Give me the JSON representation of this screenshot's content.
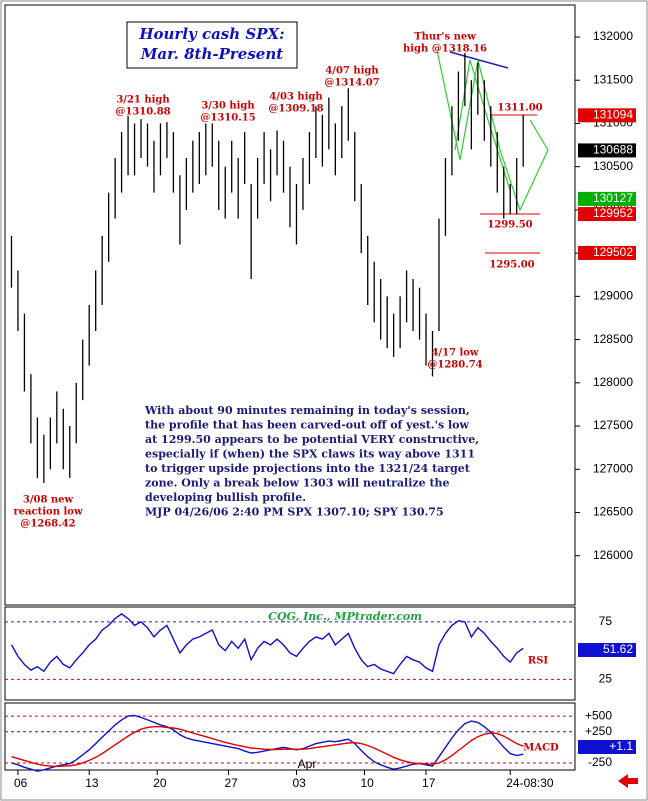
{
  "chart_data": [
    {
      "type": "ohlc",
      "title_lines": [
        "Hourly cash SPX:",
        "Mar. 8th-Present"
      ],
      "high": [
        129700,
        129300,
        128800,
        128100,
        127600,
        127400,
        127600,
        127900,
        127700,
        127500,
        128000,
        128500,
        128900,
        129300,
        129700,
        130200,
        130600,
        130900,
        131088,
        131000,
        131050,
        131000,
        130800,
        131000,
        131015,
        130900,
        130400,
        130600,
        130800,
        130900,
        131000,
        131000,
        130800,
        130500,
        130800,
        130600,
        130900,
        130300,
        130600,
        130900,
        130700,
        130918,
        130800,
        130500,
        130300,
        130600,
        130900,
        131200,
        131100,
        131300,
        131000,
        131200,
        131407,
        130900,
        130300,
        129700,
        129400,
        129200,
        129000,
        128800,
        129000,
        129300,
        129200,
        129100,
        128800,
        128600,
        129900,
        130600,
        131200,
        131600,
        131816,
        131500,
        131700,
        131500,
        131200,
        130900,
        130500,
        130300,
        130600,
        131100
      ],
      "low": [
        129100,
        128600,
        127900,
        127300,
        126900,
        126842,
        127000,
        127300,
        127000,
        126900,
        127300,
        127800,
        128200,
        128600,
        128900,
        129400,
        129900,
        130200,
        130400,
        130400,
        130600,
        130500,
        130200,
        130400,
        130600,
        130200,
        129600,
        130000,
        130200,
        130300,
        130400,
        130500,
        130000,
        129900,
        130200,
        129900,
        130300,
        129200,
        129900,
        130300,
        130100,
        130400,
        130200,
        129800,
        129600,
        130000,
        130300,
        130600,
        130500,
        130700,
        130400,
        130600,
        130800,
        130100,
        129500,
        128900,
        128700,
        128500,
        128400,
        128300,
        128400,
        128700,
        128600,
        128500,
        128200,
        128074,
        128600,
        129700,
        130400,
        130800,
        131200,
        130700,
        131100,
        130800,
        130500,
        130200,
        129900,
        129950,
        129950,
        130500
      ],
      "ylim": [
        125430,
        132370
      ],
      "yticks": [
        126000,
        126500,
        127000,
        127500,
        128000,
        128500,
        129000,
        129500,
        130000,
        130500,
        131000,
        131500,
        132000
      ],
      "price_markers": [
        {
          "value": 131094,
          "color": "#e00000"
        },
        {
          "value": 130688,
          "color": "#000000"
        },
        {
          "value": 130127,
          "color": "#00b000"
        },
        {
          "value": 129952,
          "color": "#e00000"
        },
        {
          "value": 129502,
          "color": "#e00000"
        }
      ],
      "annotations": [
        {
          "lines": [
            "Thur's new",
            "high @1318.16"
          ]
        },
        {
          "lines": [
            "3/21 high",
            "@1310.88"
          ]
        },
        {
          "lines": [
            "3/30 high",
            "@1310.15"
          ]
        },
        {
          "lines": [
            "4/03 high",
            "@1309.18"
          ]
        },
        {
          "lines": [
            "4/07 high",
            "@1314.07"
          ]
        },
        {
          "lines": [
            "1311.00"
          ]
        },
        {
          "lines": [
            "1299.50"
          ]
        },
        {
          "lines": [
            "1295.00"
          ]
        },
        {
          "lines": [
            "4/17 low",
            "@1280.74"
          ]
        },
        {
          "lines": [
            "3/08 new",
            "reaction low",
            "@1268.42"
          ]
        }
      ],
      "commentary": [
        "With about 90 minutes remaining in today's session,",
        "the profile that has been carved-out off of yest.'s low",
        "at 1299.50 appears to be potential VERY constructive,",
        "especially if (when) the SPX claws its way above 1311",
        "to trigger upside projections into the 1321/24 target",
        "zone. Only a break below 1303 will neutralize the",
        "developing bullish profile.",
        "MJP  04/26/06 2:40 PM SPX 1307.10; SPY 130.75"
      ]
    },
    {
      "type": "line",
      "source": "CQG, Inc., MPtrader.com",
      "series": [
        {
          "name": "RSI",
          "color": "#1010d0",
          "values": [
            55,
            45,
            38,
            33,
            36,
            32,
            40,
            45,
            38,
            35,
            42,
            48,
            55,
            60,
            68,
            72,
            78,
            82,
            78,
            72,
            75,
            70,
            62,
            68,
            72,
            60,
            48,
            55,
            60,
            62,
            65,
            68,
            55,
            50,
            58,
            52,
            60,
            42,
            52,
            58,
            55,
            60,
            55,
            48,
            45,
            52,
            58,
            62,
            60,
            65,
            55,
            60,
            65,
            52,
            42,
            36,
            38,
            34,
            32,
            30,
            38,
            45,
            42,
            40,
            35,
            32,
            55,
            65,
            72,
            76,
            75,
            62,
            70,
            65,
            58,
            52,
            45,
            40,
            48,
            52
          ]
        }
      ],
      "ylim": [
        7,
        88
      ],
      "yticks": [
        25,
        75
      ],
      "current": {
        "value": 51.62,
        "color": "#1010d0"
      }
    },
    {
      "type": "line",
      "series": [
        {
          "name": "MACD",
          "color": "#1010d0",
          "values": [
            -250,
            -280,
            -320,
            -350,
            -380,
            -360,
            -330,
            -300,
            -280,
            -260,
            -200,
            -120,
            -40,
            60,
            160,
            260,
            360,
            440,
            500,
            510,
            480,
            440,
            400,
            360,
            330,
            280,
            200,
            150,
            120,
            100,
            80,
            60,
            40,
            20,
            0,
            -20,
            -60,
            -90,
            -80,
            -60,
            -40,
            -20,
            0,
            -20,
            -40,
            -20,
            20,
            60,
            80,
            100,
            90,
            110,
            130,
            60,
            -50,
            -150,
            -230,
            -280,
            -320,
            -350,
            -330,
            -300,
            -270,
            -260,
            -280,
            -300,
            -150,
            0,
            150,
            280,
            380,
            420,
            400,
            330,
            240,
            120,
            0,
            -100,
            -130,
            -110
          ]
        },
        {
          "color": "#e00000",
          "values": [
            -150,
            -180,
            -210,
            -240,
            -270,
            -290,
            -300,
            -305,
            -300,
            -295,
            -280,
            -250,
            -210,
            -160,
            -100,
            -30,
            40,
            110,
            180,
            240,
            290,
            320,
            330,
            330,
            320,
            310,
            290,
            260,
            230,
            200,
            170,
            140,
            110,
            80,
            55,
            30,
            10,
            -10,
            -20,
            -30,
            -35,
            -35,
            -30,
            -30,
            -30,
            -30,
            -20,
            -5,
            10,
            25,
            40,
            55,
            70,
            75,
            60,
            30,
            -10,
            -60,
            -110,
            -160,
            -200,
            -230,
            -250,
            -260,
            -265,
            -270,
            -250,
            -200,
            -130,
            -50,
            30,
            110,
            170,
            210,
            230,
            220,
            180,
            120,
            60,
            20
          ]
        }
      ],
      "ylim": [
        -363,
        710
      ],
      "yticks": [
        {
          "value": 500,
          "label": "+500"
        },
        {
          "value": 250,
          "label": "+250"
        },
        -250
      ],
      "current": {
        "value": 1.1,
        "label": "+1.1",
        "color": "#1010d0"
      },
      "xlim": [
        -1,
        87
      ],
      "xticks": [
        {
          "value": 1,
          "label": "06"
        },
        {
          "value": 12,
          "label": "13"
        },
        {
          "value": 22.5,
          "label": "20"
        },
        {
          "value": 33.5,
          "label": "27"
        },
        {
          "value": 44,
          "label": "03"
        },
        {
          "value": 54.5,
          "label": "10"
        },
        {
          "value": 64,
          "label": "17"
        },
        {
          "value": 77,
          "label": "24-08:30"
        }
      ],
      "month_label": "Apr"
    }
  ]
}
